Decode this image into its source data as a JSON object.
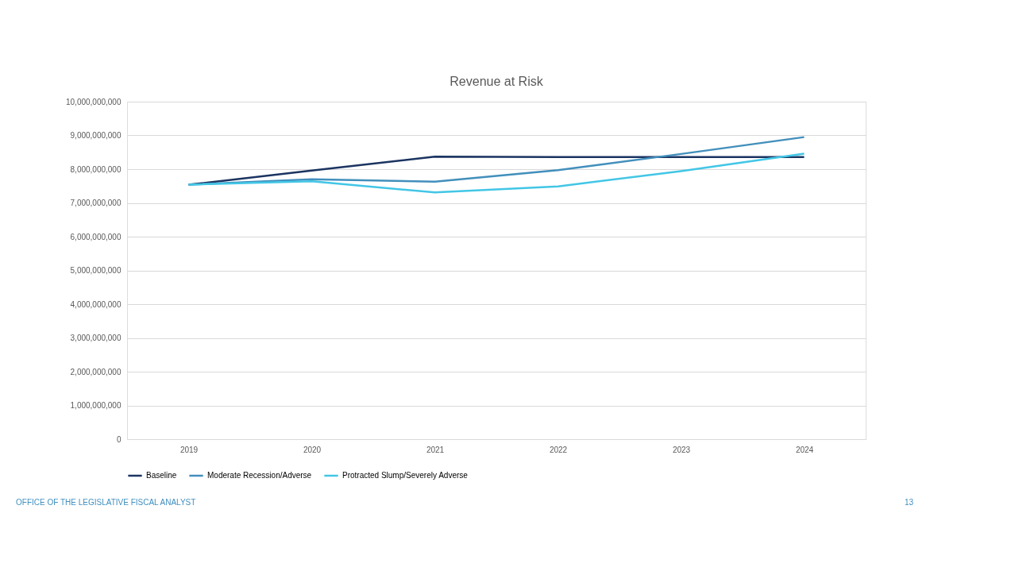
{
  "chart_data": {
    "type": "line",
    "title": "Revenue at Risk",
    "categories": [
      "2019",
      "2020",
      "2021",
      "2022",
      "2023",
      "2024"
    ],
    "series": [
      {
        "name": "Baseline",
        "color": "#1b3461",
        "values": [
          7540000000,
          7960000000,
          8370000000,
          8360000000,
          8360000000,
          8360000000
        ]
      },
      {
        "name": "Moderate Recession/Adverse",
        "color": "#428fbc",
        "values": [
          7540000000,
          7700000000,
          7630000000,
          7970000000,
          8450000000,
          8950000000
        ]
      },
      {
        "name": "Protracted Slump/Severely Adverse",
        "color": "#42c6e6",
        "values": [
          7540000000,
          7640000000,
          7310000000,
          7490000000,
          7940000000,
          8460000000
        ]
      }
    ],
    "ylim": [
      0,
      10000000000
    ],
    "yticks": [
      0,
      {
        "value": 1000000000,
        "label": "1,000,000,000"
      },
      {
        "value": 2000000000,
        "label": "2,000,000,000"
      },
      {
        "value": 3000000000,
        "label": "3,000,000,000"
      },
      {
        "value": 4000000000,
        "label": "4,000,000,000"
      },
      {
        "value": 5000000000,
        "label": "5,000,000,000"
      },
      {
        "value": 6000000000,
        "label": "6,000,000,000"
      },
      {
        "value": 7000000000,
        "label": "7,000,000,000"
      },
      {
        "value": 8000000000,
        "label": "8,000,000,000"
      },
      {
        "value": 9000000000,
        "label": "9,000,000,000"
      },
      {
        "value": 10000000000,
        "label": "10,000,000,000"
      }
    ],
    "grid": "y",
    "legend": "bottom",
    "marker": "none",
    "line_style": "solid",
    "annotations": [
      "OFFICE OF THE LEGISLATIVE FISCAL ANALYST",
      "13"
    ]
  }
}
